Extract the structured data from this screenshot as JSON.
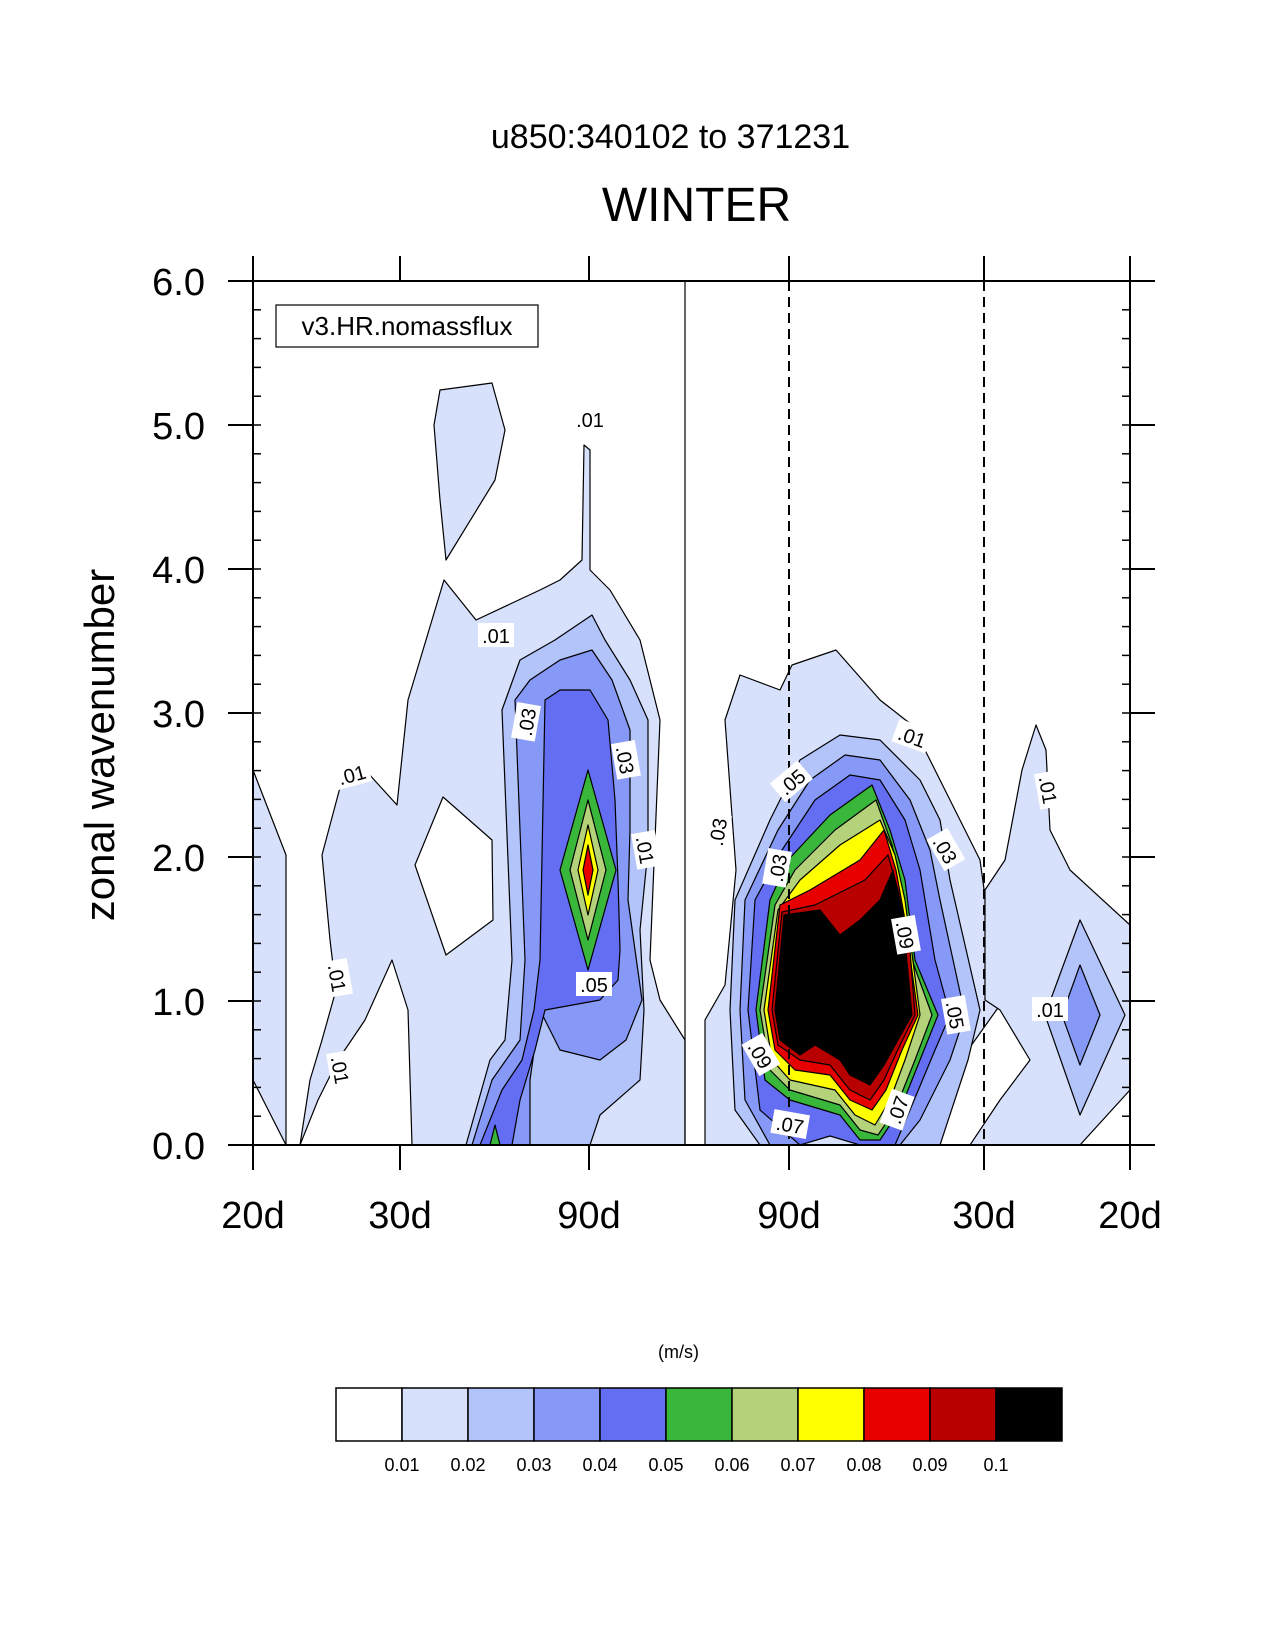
{
  "title": "u850:340102 to 371231",
  "subtitle": "WINTER",
  "ylabel": "zonal wavenumber",
  "units": "(m/s)",
  "legend_box": "v3.HR.nomassflux",
  "chart_data": {
    "type": "contour",
    "title": "u850:340102 to 371231",
    "subtitle": "WINTER",
    "ylabel": "zonal wavenumber",
    "ylim": [
      0,
      6
    ],
    "yticks": [
      "0.0",
      "1.0",
      "2.0",
      "3.0",
      "4.0",
      "5.0",
      "6.0"
    ],
    "xticks": [
      "20d",
      "30d",
      "90d",
      "90d",
      "30d",
      "20d"
    ],
    "colorbar": {
      "units": "(m/s)",
      "levels": [
        "0.01",
        "0.02",
        "0.03",
        "0.04",
        "0.05",
        "0.06",
        "0.07",
        "0.08",
        "0.09",
        "0.1"
      ],
      "colors": [
        "#ffffff",
        "#d7e1fb",
        "#b3c4fa",
        "#8799f7",
        "#636ef2",
        "#39b73b",
        "#b4d27a",
        "#ffff00",
        "#e60000",
        "#b80000",
        "#000000"
      ]
    },
    "contour_labels": [
      ".01",
      ".01",
      ".01",
      ".01",
      ".03",
      ".03",
      ".05",
      ".01",
      ".01",
      ".03",
      ".05",
      ".03",
      ".09",
      ".05",
      ".09",
      ".07",
      ".07",
      ".01",
      ".01",
      ".01",
      ".03"
    ],
    "features": {
      "westward_peak": {
        "wavenumber": 2,
        "max": 0.09
      },
      "eastward_peak": {
        "wavenumber_range": [
          0.5,
          2
        ],
        "max": 0.1
      }
    }
  }
}
